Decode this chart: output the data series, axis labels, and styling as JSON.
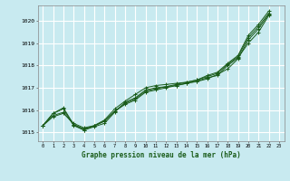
{
  "title": "Graphe pression niveau de la mer (hPa)",
  "bg_color": "#c8eaf0",
  "grid_color": "#ffffff",
  "line_color": "#1a5c1a",
  "x_ticks": [
    0,
    1,
    2,
    3,
    4,
    5,
    6,
    7,
    8,
    9,
    10,
    11,
    12,
    13,
    14,
    15,
    16,
    17,
    18,
    19,
    20,
    21,
    22,
    23
  ],
  "ylim": [
    1014.6,
    1020.7
  ],
  "yticks": [
    1015,
    1016,
    1017,
    1018,
    1019,
    1020
  ],
  "series": [
    [
      1015.3,
      1015.7,
      1015.85,
      1015.4,
      1015.2,
      1015.3,
      1015.5,
      1015.95,
      1016.3,
      1016.5,
      1016.85,
      1016.95,
      1017.05,
      1017.1,
      1017.2,
      1017.3,
      1017.45,
      1017.55,
      1018.0,
      1018.35,
      1019.0,
      1019.5,
      1020.25,
      null
    ],
    [
      1015.3,
      1015.75,
      1015.9,
      1015.35,
      1015.15,
      1015.28,
      1015.5,
      1015.95,
      1016.25,
      1016.45,
      1016.8,
      1016.9,
      1017.0,
      1017.1,
      1017.2,
      1017.28,
      1017.4,
      1017.6,
      1017.85,
      1018.3,
      1019.15,
      1019.65,
      1020.3,
      null
    ],
    [
      1015.3,
      1015.85,
      1016.05,
      1015.3,
      1015.1,
      1015.25,
      1015.4,
      1015.9,
      1016.35,
      1016.55,
      1016.9,
      1017.0,
      1017.05,
      1017.15,
      1017.25,
      1017.35,
      1017.5,
      1017.65,
      1018.05,
      1018.4,
      1019.25,
      1019.75,
      1020.35,
      null
    ],
    [
      1015.3,
      1015.85,
      1016.1,
      1015.35,
      1015.1,
      1015.3,
      1015.55,
      1016.05,
      1016.4,
      1016.7,
      1017.0,
      1017.1,
      1017.15,
      1017.2,
      1017.25,
      1017.35,
      1017.55,
      1017.7,
      1018.1,
      1018.45,
      1019.35,
      1019.85,
      1020.45,
      null
    ]
  ]
}
